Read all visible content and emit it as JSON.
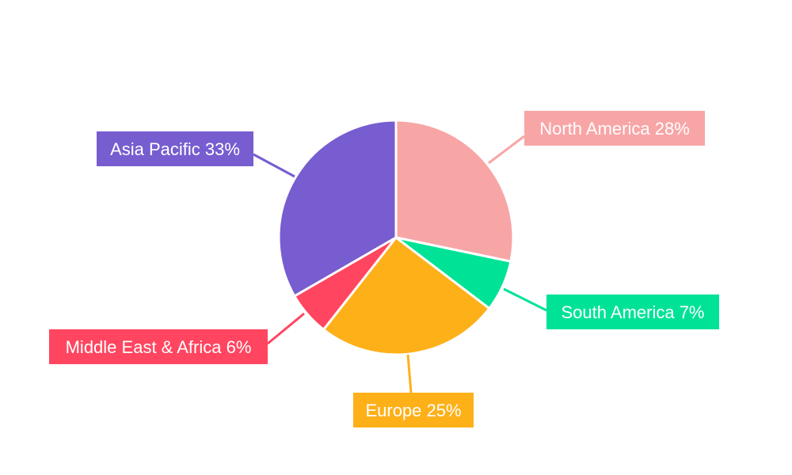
{
  "chart_data": {
    "type": "pie",
    "title": "",
    "legend": "none",
    "start_angle": "top, clockwise",
    "slices": [
      {
        "label": "North America",
        "value": 28,
        "display": "North America 28%",
        "color": "#F8A5A6"
      },
      {
        "label": "South America",
        "value": 7,
        "display": "South America 7%",
        "color": "#00E396"
      },
      {
        "label": "Europe",
        "value": 25,
        "display": "Europe 25%",
        "color": "#FEB019"
      },
      {
        "label": "Middle East & Africa",
        "value": 6,
        "display": "Middle East & Africa 6%",
        "color": "#FF4560"
      },
      {
        "label": "Asia Pacific",
        "value": 33,
        "display": "Asia Pacific 33%",
        "color": "#775DD0"
      }
    ]
  }
}
